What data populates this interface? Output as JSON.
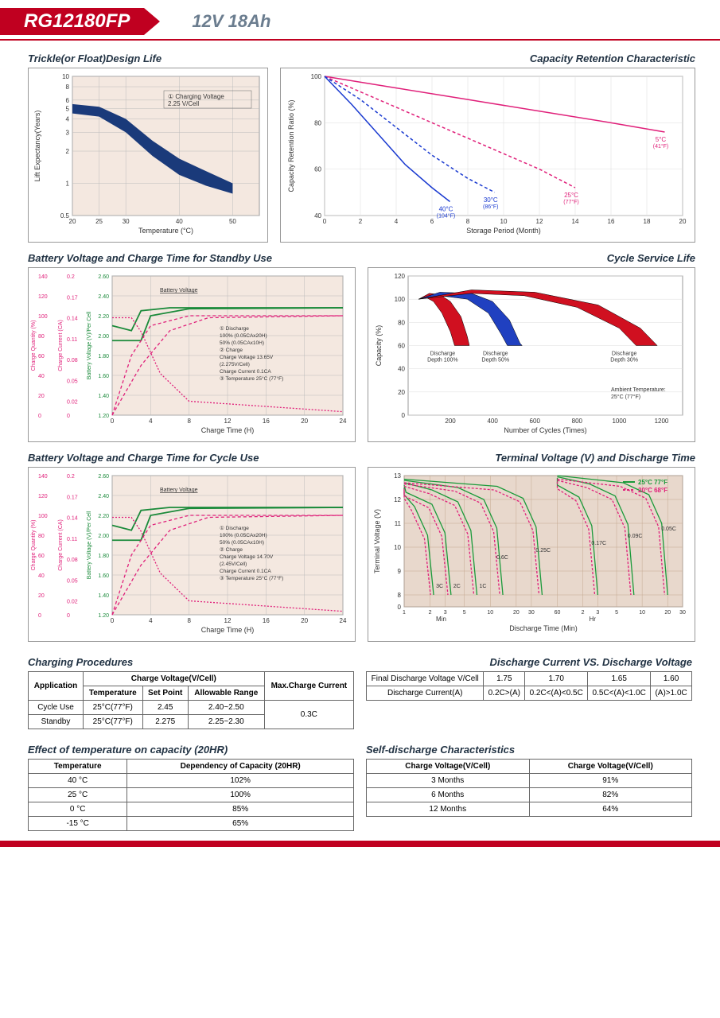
{
  "header": {
    "model": "RG12180FP",
    "spec": "12V  18Ah"
  },
  "chart1": {
    "title": "Trickle(or Float)Design Life",
    "xlabel": "Temperature (°C)",
    "ylabel": "Lift Expectancy(Years)",
    "xticks": [
      20,
      25,
      30,
      40,
      50
    ],
    "yticks": [
      0.5,
      1,
      2,
      3,
      4,
      5,
      6,
      8,
      10
    ],
    "legend": "① Charging Voltage 2.25 V/Cell",
    "band_upper": [
      [
        20,
        5.5
      ],
      [
        25,
        5.2
      ],
      [
        30,
        4.0
      ],
      [
        35,
        2.5
      ],
      [
        40,
        1.7
      ],
      [
        45,
        1.3
      ],
      [
        50,
        1.0
      ]
    ],
    "band_lower": [
      [
        20,
        4.5
      ],
      [
        25,
        4.2
      ],
      [
        30,
        3.0
      ],
      [
        35,
        1.8
      ],
      [
        40,
        1.2
      ],
      [
        45,
        0.95
      ],
      [
        50,
        0.8
      ]
    ],
    "band_color": "#1a3a7a",
    "plot_bg": "#f4e8e0"
  },
  "chart2": {
    "title": "Capacity  Retention  Characteristic",
    "xlabel": "Storage Period (Month)",
    "ylabel": "Capacity Retention Ratio (%)",
    "xticks": [
      0,
      2,
      4,
      6,
      8,
      10,
      12,
      14,
      16,
      18,
      20
    ],
    "yticks": [
      40,
      60,
      80,
      100
    ],
    "series": [
      {
        "label": "5°C (41°F)",
        "color": "#e0207a",
        "dash": "0",
        "pts": [
          [
            0,
            100
          ],
          [
            4,
            95
          ],
          [
            8,
            90
          ],
          [
            12,
            85
          ],
          [
            16,
            80
          ],
          [
            19,
            76
          ]
        ]
      },
      {
        "label": "25°C (77°F)",
        "color": "#e0207a",
        "dash": "4,3",
        "pts": [
          [
            0,
            100
          ],
          [
            3,
            90
          ],
          [
            6,
            80
          ],
          [
            9,
            70
          ],
          [
            12,
            60
          ],
          [
            14,
            52
          ]
        ]
      },
      {
        "label": "30°C (86°F)",
        "color": "#1a3ad0",
        "dash": "4,3",
        "pts": [
          [
            0,
            100
          ],
          [
            2,
            90
          ],
          [
            4,
            78
          ],
          [
            6,
            66
          ],
          [
            8,
            56
          ],
          [
            9.5,
            50
          ]
        ]
      },
      {
        "label": "40°C (104°F)",
        "color": "#1a3ad0",
        "dash": "0",
        "pts": [
          [
            0,
            100
          ],
          [
            1.5,
            88
          ],
          [
            3,
            75
          ],
          [
            4.5,
            62
          ],
          [
            6,
            52
          ],
          [
            7,
            46
          ]
        ]
      }
    ],
    "plot_bg": "#ffffff"
  },
  "chart3": {
    "title": "Battery Voltage and Charge Time for Standby Use",
    "xlabel": "Charge Time (H)",
    "xticks": [
      0,
      4,
      8,
      12,
      16,
      20,
      24
    ],
    "y1": {
      "label": "Charge Quantity (%)",
      "color": "#e0207a",
      "ticks": [
        0,
        20,
        40,
        60,
        80,
        100,
        120,
        140
      ]
    },
    "y2": {
      "label": "Charge Current (CA)",
      "color": "#e0207a",
      "ticks": [
        0,
        0.02,
        0.05,
        0.08,
        0.11,
        0.14,
        0.17,
        0.2
      ]
    },
    "y3": {
      "label": "Battery Voltage (V)/Per Cell",
      "color": "#1a8a3a",
      "ticks": [
        1.2,
        1.4,
        1.6,
        1.8,
        2.0,
        2.2,
        2.4,
        2.6
      ]
    },
    "anno": [
      "① Discharge",
      "  100% (0.05CAx20H)",
      "  50%  (0.05CAx10H)",
      "② Charge",
      "  Charge Voltage 13.65V",
      "  (2.275V/Cell)",
      "  Charge Current 0.1CA",
      "③ Temperature 25°C (77°F)"
    ],
    "green_solid1": [
      [
        0,
        2.1
      ],
      [
        2,
        2.05
      ],
      [
        3,
        2.25
      ],
      [
        6,
        2.28
      ],
      [
        24,
        2.28
      ]
    ],
    "green_solid2": [
      [
        0,
        1.95
      ],
      [
        3,
        1.95
      ],
      [
        4,
        2.2
      ],
      [
        8,
        2.27
      ],
      [
        24,
        2.28
      ]
    ],
    "pink_dash1": [
      [
        0,
        0
      ],
      [
        2,
        60
      ],
      [
        4,
        90
      ],
      [
        8,
        100
      ],
      [
        24,
        100
      ]
    ],
    "pink_dash2": [
      [
        0,
        0
      ],
      [
        3,
        50
      ],
      [
        6,
        85
      ],
      [
        10,
        98
      ],
      [
        24,
        100
      ]
    ],
    "pink_curr": [
      [
        0,
        0.14
      ],
      [
        2,
        0.14
      ],
      [
        3,
        0.12
      ],
      [
        5,
        0.06
      ],
      [
        8,
        0.02
      ],
      [
        24,
        0.005
      ]
    ],
    "plot_bg": "#f4e8e0"
  },
  "chart4": {
    "title": "Cycle Service Life",
    "xlabel": "Number of Cycles (Times)",
    "ylabel": "Capacity (%)",
    "xticks": [
      200,
      400,
      600,
      800,
      1000,
      1200
    ],
    "yticks": [
      0,
      20,
      40,
      60,
      80,
      100,
      120
    ],
    "anno_amb": "Ambient Temperature: 25°C (77°F)",
    "wedges": [
      {
        "label": "Discharge Depth 100%",
        "color": "#d01020",
        "outer": [
          [
            50,
            100
          ],
          [
            100,
            105
          ],
          [
            150,
            104
          ],
          [
            200,
            98
          ],
          [
            250,
            85
          ],
          [
            280,
            68
          ],
          [
            290,
            60
          ]
        ],
        "inner": [
          [
            50,
            100
          ],
          [
            80,
            102
          ],
          [
            120,
            98
          ],
          [
            160,
            88
          ],
          [
            200,
            72
          ],
          [
            220,
            60
          ]
        ]
      },
      {
        "label": "Discharge Depth 50%",
        "color": "#2040c0",
        "outer": [
          [
            50,
            100
          ],
          [
            150,
            106
          ],
          [
            300,
            105
          ],
          [
            400,
            98
          ],
          [
            480,
            82
          ],
          [
            530,
            62
          ],
          [
            540,
            60
          ]
        ],
        "inner": [
          [
            50,
            100
          ],
          [
            150,
            103
          ],
          [
            280,
            100
          ],
          [
            380,
            88
          ],
          [
            440,
            70
          ],
          [
            470,
            60
          ]
        ]
      },
      {
        "label": "Discharge Depth 30%",
        "color": "#d01020",
        "outer": [
          [
            50,
            100
          ],
          [
            300,
            108
          ],
          [
            600,
            106
          ],
          [
            900,
            95
          ],
          [
            1100,
            75
          ],
          [
            1180,
            60
          ]
        ],
        "inner": [
          [
            50,
            100
          ],
          [
            300,
            105
          ],
          [
            550,
            103
          ],
          [
            800,
            93
          ],
          [
            1000,
            75
          ],
          [
            1080,
            60
          ]
        ]
      }
    ],
    "plot_bg": "#ffffff"
  },
  "chart5": {
    "title": "Battery Voltage and Charge Time for Cycle Use",
    "xlabel": "Charge Time (H)",
    "xticks": [
      0,
      4,
      8,
      12,
      16,
      20,
      24
    ],
    "anno": [
      "① Discharge",
      "  100% (0.05CAx20H)",
      "  50%  (0.05CAx10H)",
      "② Charge",
      "  Charge Voltage 14.70V",
      "  (2.45V/Cell)",
      "  Charge Current 0.1CA",
      "③ Temperature 25°C (77°F)"
    ],
    "plot_bg": "#f4e8e0"
  },
  "chart6": {
    "title": "Terminal Voltage (V) and Discharge Time",
    "xlabel": "Discharge Time (Min)",
    "ylabel": "Terminal Voltage (V)",
    "yticks": [
      0,
      8,
      9,
      10,
      11,
      12,
      13
    ],
    "legend": [
      {
        "label": "25°C 77°F",
        "color": "#1a9a3a"
      },
      {
        "label": "20°C 68°F",
        "color": "#e0207a"
      }
    ],
    "rates": [
      "3C",
      "2C",
      "1C",
      "0.6C",
      "0.25C",
      "0.17C",
      "0.09C",
      "0.05C"
    ],
    "x_sections": {
      "min": [
        1,
        2,
        3,
        5,
        10,
        20,
        30,
        60
      ],
      "hr": [
        2,
        3,
        5,
        10,
        20,
        30
      ]
    },
    "plot_bg": "#e8d8cc"
  },
  "table_charging": {
    "title": "Charging Procedures",
    "headers": {
      "app": "Application",
      "cv": "Charge Voltage(V/Cell)",
      "temp": "Temperature",
      "sp": "Set Point",
      "ar": "Allowable Range",
      "max": "Max.Charge Current"
    },
    "rows": [
      {
        "app": "Cycle Use",
        "temp": "25°C(77°F)",
        "sp": "2.45",
        "ar": "2.40~2.50"
      },
      {
        "app": "Standby",
        "temp": "25°C(77°F)",
        "sp": "2.275",
        "ar": "2.25~2.30"
      }
    ],
    "max_current": "0.3C"
  },
  "table_discharge": {
    "title": "Discharge Current VS. Discharge Voltage",
    "r1_label": "Final Discharge Voltage V/Cell",
    "r1": [
      "1.75",
      "1.70",
      "1.65",
      "1.60"
    ],
    "r2_label": "Discharge Current(A)",
    "r2": [
      "0.2C>(A)",
      "0.2C<(A)<0.5C",
      "0.5C<(A)<1.0C",
      "(A)>1.0C"
    ]
  },
  "table_temp": {
    "title": "Effect of temperature on capacity (20HR)",
    "h1": "Temperature",
    "h2": "Dependency of Capacity (20HR)",
    "rows": [
      [
        "40 °C",
        "102%"
      ],
      [
        "25 °C",
        "100%"
      ],
      [
        "0 °C",
        "85%"
      ],
      [
        "-15 °C",
        "65%"
      ]
    ]
  },
  "table_self": {
    "title": "Self-discharge Characteristics",
    "h1": "Charge Voltage(V/Cell)",
    "h2": "Charge Voltage(V/Cell)",
    "rows": [
      [
        "3 Months",
        "91%"
      ],
      [
        "6 Months",
        "82%"
      ],
      [
        "12 Months",
        "64%"
      ]
    ]
  }
}
